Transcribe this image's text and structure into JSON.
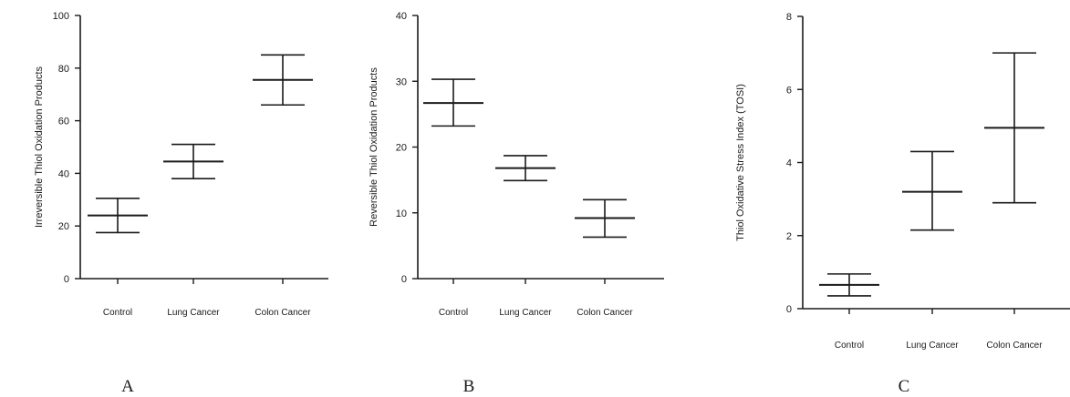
{
  "figure": {
    "panel_letters": [
      "A",
      "B",
      "C"
    ]
  },
  "chart_data": [
    {
      "type": "scatter",
      "panel": "A",
      "title": "",
      "xlabel": "",
      "ylabel": "Irreversible Thiol Oxidation Products",
      "categories": [
        "Control",
        "Lung Cancer",
        "Colon Cancer"
      ],
      "series": [
        {
          "mean": [
            24,
            44.5,
            75.5
          ],
          "lower": [
            17.5,
            38,
            66
          ],
          "upper": [
            30.5,
            51,
            85
          ]
        }
      ],
      "ylim": [
        0,
        100
      ],
      "yticks": [
        0,
        20,
        40,
        60,
        80,
        100
      ],
      "grid": false,
      "marker": "mean-with-error-bar",
      "color": "#1a1a1a"
    },
    {
      "type": "scatter",
      "panel": "B",
      "title": "",
      "xlabel": "",
      "ylabel": "Reversible Thiol Oxidation Products",
      "categories": [
        "Control",
        "Lung Cancer",
        "Colon Cancer"
      ],
      "series": [
        {
          "mean": [
            26.7,
            16.8,
            9.2
          ],
          "lower": [
            23.2,
            14.9,
            6.3
          ],
          "upper": [
            30.3,
            18.7,
            12
          ]
        }
      ],
      "ylim": [
        0,
        40
      ],
      "yticks": [
        0,
        10,
        20,
        30,
        40
      ],
      "grid": false,
      "marker": "mean-with-error-bar",
      "color": "#1a1a1a"
    },
    {
      "type": "scatter",
      "panel": "C",
      "title": "",
      "xlabel": "",
      "ylabel": "Thiol Oxidative Stress Index (TOSI)",
      "categories": [
        "Control",
        "Lung Cancer",
        "Colon Cancer"
      ],
      "series": [
        {
          "mean": [
            0.65,
            3.2,
            4.95
          ],
          "lower": [
            0.35,
            2.15,
            2.9
          ],
          "upper": [
            0.95,
            4.3,
            7
          ]
        }
      ],
      "ylim": [
        0,
        8
      ],
      "yticks": [
        0,
        2,
        4,
        6,
        8
      ],
      "grid": false,
      "marker": "mean-with-error-bar",
      "color": "#1a1a1a"
    }
  ]
}
